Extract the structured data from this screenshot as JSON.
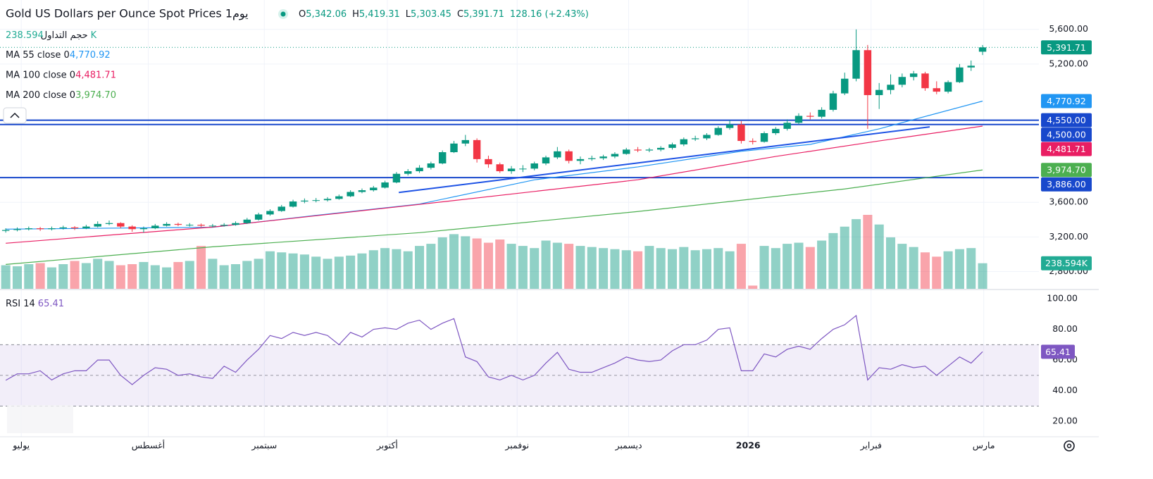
{
  "header": {
    "title": "Gold US Dollars per Ounce Spot Prices 1يوم",
    "quote": [
      {
        "label": "O",
        "value": "5,342.06"
      },
      {
        "label": "H",
        "value": "5,419.31"
      },
      {
        "label": "L",
        "value": "5,303.45"
      },
      {
        "label": "C",
        "value": "5,391.71"
      }
    ],
    "change": "128.16 (+2.43%)"
  },
  "chart_data": [
    {
      "type": "candlestick",
      "up_color": "#089981",
      "down_color": "#f23645",
      "ylim": [
        2600,
        5940
      ],
      "yticks": [
        {
          "value": 5600,
          "label": "5,600.00"
        },
        {
          "value": 5200,
          "label": "5,200.00"
        },
        {
          "value": 3600,
          "label": "3,600.00"
        },
        {
          "value": 3200,
          "label": "3,200.00"
        },
        {
          "value": 2800,
          "label": "2,800.00"
        }
      ],
      "xlim": [
        -0.5,
        89.9
      ],
      "xticks": [
        {
          "value": 1.35,
          "label": "يوليو"
        },
        {
          "value": 12.4,
          "label": "أغسطس"
        },
        {
          "value": 22.5,
          "label": "سبتمبر"
        },
        {
          "value": 33.2,
          "label": "أكتوبر"
        },
        {
          "value": 44.5,
          "label": "نوفمبر"
        },
        {
          "value": 54.2,
          "label": "ديسمبر"
        },
        {
          "value": 64.6,
          "label": "2026"
        },
        {
          "value": 75.3,
          "label": "فبراير"
        },
        {
          "value": 85.1,
          "label": "مارس"
        }
      ],
      "grid": true,
      "last_label": "5,391.71",
      "ohlc": [
        [
          3270,
          3300,
          3250,
          3280
        ],
        [
          3280,
          3310,
          3265,
          3290
        ],
        [
          3290,
          3320,
          3275,
          3300
        ],
        [
          3300,
          3315,
          3270,
          3290
        ],
        [
          3290,
          3320,
          3275,
          3300
        ],
        [
          3300,
          3330,
          3285,
          3310
        ],
        [
          3310,
          3325,
          3280,
          3300
        ],
        [
          3300,
          3340,
          3290,
          3320
        ],
        [
          3320,
          3380,
          3310,
          3350
        ],
        [
          3350,
          3390,
          3335,
          3360
        ],
        [
          3360,
          3370,
          3300,
          3320
        ],
        [
          3320,
          3335,
          3260,
          3290
        ],
        [
          3290,
          3320,
          3250,
          3300
        ],
        [
          3300,
          3350,
          3290,
          3330
        ],
        [
          3330,
          3370,
          3320,
          3350
        ],
        [
          3350,
          3365,
          3325,
          3340
        ],
        [
          3340,
          3360,
          3320,
          3340
        ],
        [
          3340,
          3355,
          3315,
          3330
        ],
        [
          3330,
          3350,
          3310,
          3330
        ],
        [
          3330,
          3360,
          3320,
          3340
        ],
        [
          3340,
          3380,
          3330,
          3360
        ],
        [
          3360,
          3420,
          3350,
          3400
        ],
        [
          3400,
          3480,
          3390,
          3460
        ],
        [
          3460,
          3520,
          3445,
          3500
        ],
        [
          3500,
          3570,
          3490,
          3550
        ],
        [
          3550,
          3630,
          3540,
          3610
        ],
        [
          3610,
          3645,
          3590,
          3620
        ],
        [
          3620,
          3650,
          3600,
          3625
        ],
        [
          3625,
          3660,
          3610,
          3640
        ],
        [
          3640,
          3690,
          3630,
          3670
        ],
        [
          3670,
          3740,
          3660,
          3720
        ],
        [
          3720,
          3760,
          3705,
          3740
        ],
        [
          3740,
          3790,
          3725,
          3770
        ],
        [
          3770,
          3850,
          3760,
          3830
        ],
        [
          3830,
          3950,
          3820,
          3930
        ],
        [
          3930,
          3985,
          3910,
          3960
        ],
        [
          3960,
          4030,
          3940,
          4000
        ],
        [
          4000,
          4070,
          3980,
          4050
        ],
        [
          4050,
          4200,
          4040,
          4180
        ],
        [
          4180,
          4310,
          4170,
          4280
        ],
        [
          4280,
          4380,
          4250,
          4320
        ],
        [
          4320,
          4340,
          4060,
          4100
        ],
        [
          4100,
          4140,
          4000,
          4040
        ],
        [
          4040,
          4060,
          3940,
          3960
        ],
        [
          3960,
          4020,
          3930,
          3990
        ],
        [
          3990,
          4030,
          3950,
          3990
        ],
        [
          3990,
          4070,
          3970,
          4050
        ],
        [
          4050,
          4140,
          4030,
          4120
        ],
        [
          4120,
          4240,
          4100,
          4190
        ],
        [
          4190,
          4210,
          4050,
          4080
        ],
        [
          4080,
          4130,
          4040,
          4100
        ],
        [
          4100,
          4140,
          4080,
          4110
        ],
        [
          4110,
          4150,
          4090,
          4130
        ],
        [
          4130,
          4180,
          4110,
          4160
        ],
        [
          4160,
          4230,
          4150,
          4210
        ],
        [
          4210,
          4240,
          4180,
          4200
        ],
        [
          4200,
          4230,
          4180,
          4210
        ],
        [
          4210,
          4250,
          4190,
          4230
        ],
        [
          4230,
          4290,
          4210,
          4270
        ],
        [
          4270,
          4350,
          4250,
          4330
        ],
        [
          4330,
          4370,
          4310,
          4340
        ],
        [
          4340,
          4400,
          4320,
          4380
        ],
        [
          4380,
          4480,
          4370,
          4460
        ],
        [
          4460,
          4550,
          4440,
          4500
        ],
        [
          4500,
          4540,
          4280,
          4310
        ],
        [
          4310,
          4340,
          4270,
          4300
        ],
        [
          4300,
          4420,
          4290,
          4400
        ],
        [
          4400,
          4470,
          4380,
          4450
        ],
        [
          4450,
          4560,
          4430,
          4520
        ],
        [
          4520,
          4630,
          4500,
          4600
        ],
        [
          4600,
          4640,
          4560,
          4590
        ],
        [
          4590,
          4700,
          4570,
          4670
        ],
        [
          4670,
          4890,
          4650,
          4860
        ],
        [
          4860,
          5100,
          4840,
          5030
        ],
        [
          5030,
          5600,
          5000,
          5360
        ],
        [
          5360,
          5420,
          4450,
          4840
        ],
        [
          4840,
          4980,
          4680,
          4900
        ],
        [
          4900,
          5080,
          4850,
          4960
        ],
        [
          4960,
          5090,
          4930,
          5050
        ],
        [
          5050,
          5120,
          5010,
          5090
        ],
        [
          5090,
          5110,
          4890,
          4920
        ],
        [
          4920,
          5000,
          4850,
          4880
        ],
        [
          4880,
          5010,
          4860,
          4990
        ],
        [
          4990,
          5200,
          4980,
          5160
        ],
        [
          5160,
          5240,
          5120,
          5180
        ],
        [
          5342.06,
          5419.31,
          5303.45,
          5391.71
        ]
      ],
      "volume": {
        "name": "حجم التداول",
        "value_label": "238.594K",
        "color": "#22ab94",
        "values": [
          220,
          210,
          230,
          240,
          200,
          230,
          260,
          240,
          280,
          260,
          220,
          230,
          250,
          220,
          200,
          250,
          260,
          400,
          280,
          220,
          230,
          260,
          280,
          350,
          340,
          330,
          320,
          300,
          280,
          300,
          310,
          330,
          360,
          380,
          370,
          350,
          400,
          420,
          480,
          510,
          490,
          470,
          430,
          460,
          420,
          400,
          380,
          450,
          430,
          420,
          400,
          390,
          380,
          370,
          360,
          350,
          400,
          380,
          370,
          390,
          360,
          370,
          380,
          350,
          420,
          30,
          400,
          380,
          420,
          430,
          390,
          450,
          520,
          580,
          650,
          690,
          600,
          480,
          420,
          390,
          340,
          300,
          350,
          370,
          380,
          238.594
        ]
      },
      "overlays": [
        {
          "name": "MA 55 close 0",
          "value_label": "4,770.92",
          "color": "#2196f3",
          "x": [
            0,
            18,
            27,
            36,
            46,
            55,
            64,
            70,
            76,
            85
          ],
          "values": [
            3290,
            3312,
            3450,
            3580,
            3860,
            4010,
            4190,
            4270,
            4450,
            4770.92
          ]
        },
        {
          "name": "MA 100 close 0",
          "value_label": "4,481.71",
          "color": "#e91e63",
          "x": [
            0,
            18,
            36,
            55,
            67,
            76,
            85
          ],
          "values": [
            3127,
            3314,
            3576,
            3861,
            4131,
            4310,
            4481.71
          ]
        },
        {
          "name": "MA 200 close 0",
          "value_label": "3,974.70",
          "color": "#4caf50",
          "x": [
            0,
            18,
            36,
            55,
            73,
            85
          ],
          "values": [
            2882,
            3086,
            3249,
            3494,
            3755,
            3974.7
          ]
        }
      ],
      "trend_line": {
        "color": "#1e53e5",
        "x": [
          34.2,
          80.4
        ],
        "values": [
          3714,
          4473
        ]
      },
      "hlines": [
        {
          "value": 4550,
          "label": "4,550.00"
        },
        {
          "value": 4500,
          "label": "4,500.00"
        },
        {
          "value": 3886,
          "label": "3,886.00"
        }
      ],
      "hline_color": "#1848cc"
    },
    {
      "type": "line",
      "title": "RSI 14",
      "value_label": "65.41",
      "color": "#7e57c2",
      "ylim": [
        10,
        105.5
      ],
      "yticks": [
        {
          "value": 100,
          "label": "100.00"
        },
        {
          "value": 80,
          "label": "80.00"
        },
        {
          "value": 60,
          "label": "60.00"
        },
        {
          "value": 40,
          "label": "40.00"
        },
        {
          "value": 20,
          "label": "20.00"
        }
      ],
      "levels": [
        70,
        50,
        30
      ],
      "values": [
        46.8,
        51,
        51,
        53,
        47,
        51,
        53,
        53,
        60,
        60,
        50,
        44,
        50,
        55,
        54,
        50,
        51,
        49,
        48,
        56,
        52,
        60,
        67,
        76,
        74,
        78,
        76,
        78,
        76,
        70,
        78,
        75,
        80,
        81,
        80,
        84,
        86,
        80,
        84,
        87,
        62,
        59,
        49,
        47,
        50,
        47,
        50,
        58,
        65,
        54,
        52,
        52,
        55,
        58,
        62,
        60,
        59,
        60,
        66,
        70,
        70,
        73,
        80,
        81,
        53,
        53,
        64,
        62,
        67,
        69,
        67,
        74,
        80,
        83,
        89,
        47,
        55,
        54,
        57,
        55,
        56,
        50,
        56,
        62,
        58,
        65.41
      ]
    }
  ]
}
